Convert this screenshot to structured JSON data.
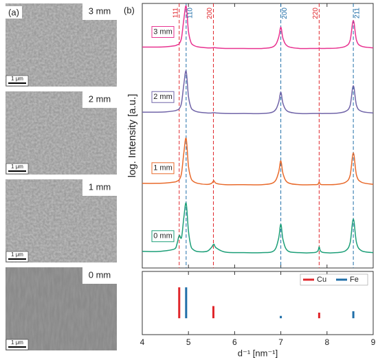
{
  "panel_a": {
    "label": "(a)",
    "images": [
      {
        "label": "3 mm",
        "scale_bar": "1 μm"
      },
      {
        "label": "2 mm",
        "scale_bar": "1 μm"
      },
      {
        "label": "1 mm",
        "scale_bar": "1 μm"
      },
      {
        "label": "0 mm",
        "scale_bar": "1 μm"
      }
    ]
  },
  "chart_data": {
    "type": "line",
    "panel_label": "(b)",
    "xlabel": "d⁻¹ [nm⁻¹]",
    "ylabel": "log. Intensity [a.u.]",
    "xlim": [
      4,
      9
    ],
    "xticks": [
      4,
      5,
      6,
      7,
      8,
      9
    ],
    "ylim": [
      0,
      100
    ],
    "x": [
      4.0,
      4.3,
      4.5,
      4.7,
      4.75,
      4.8,
      4.85,
      4.9,
      4.95,
      5.0,
      5.05,
      5.1,
      5.2,
      5.4,
      5.5,
      5.55,
      5.6,
      5.8,
      6.2,
      6.6,
      6.85,
      6.95,
      7.0,
      7.05,
      7.15,
      7.4,
      7.7,
      7.8,
      7.83,
      7.86,
      7.95,
      8.2,
      8.4,
      8.5,
      8.57,
      8.64,
      8.75,
      9.0
    ],
    "series": [
      {
        "name": "3 mm",
        "color": "#e8318f",
        "values": [
          83.5,
          83.5,
          83.6,
          84,
          84.3,
          84.8,
          87,
          94,
          99,
          89.5,
          85.5,
          84.3,
          83.6,
          83.2,
          83.2,
          83.3,
          83.2,
          83,
          83,
          83,
          83.8,
          87,
          91,
          86.6,
          83.8,
          83,
          83,
          83,
          83.1,
          83,
          83,
          83.1,
          83.8,
          86,
          93.5,
          86,
          83.8,
          83.2
        ]
      },
      {
        "name": "2 mm",
        "color": "#7064a8",
        "values": [
          58.9,
          58.9,
          59,
          59.4,
          59.7,
          60.2,
          62.4,
          69.4,
          74.4,
          64.9,
          60.9,
          59.7,
          59,
          58.6,
          58.6,
          58.7,
          58.6,
          58.4,
          58.4,
          58.4,
          59.2,
          62.4,
          66.4,
          62,
          59.2,
          58.4,
          58.4,
          58.4,
          58.5,
          58.4,
          58.4,
          58.5,
          59.2,
          61.4,
          68.9,
          61.4,
          59.2,
          58.6
        ]
      },
      {
        "name": "1 mm",
        "color": "#e8692a",
        "values": [
          32,
          32,
          32.1,
          32.5,
          32.8,
          33.4,
          35.8,
          43.5,
          49,
          38.5,
          34.2,
          32.8,
          32,
          31.6,
          32,
          33,
          32,
          31.5,
          31.5,
          31.5,
          32.4,
          36,
          40.5,
          35.5,
          32.3,
          31.5,
          31.5,
          31.6,
          32.5,
          31.6,
          31.5,
          31.6,
          32.4,
          35,
          43.5,
          35,
          32.4,
          31.6
        ]
      },
      {
        "name": "0 mm",
        "color": "#1b9e77",
        "values": [
          6.3,
          6.2,
          6.5,
          7.2,
          9,
          12.3,
          11.5,
          19,
          24.5,
          14,
          8.5,
          7,
          6.2,
          6.3,
          7.8,
          9,
          7.6,
          6,
          5.8,
          5.8,
          6.5,
          11,
          16.5,
          10.5,
          6.5,
          5.8,
          5.8,
          6.4,
          8,
          6.4,
          5.8,
          5.8,
          6.5,
          9.5,
          18.5,
          9.5,
          6.5,
          5.8
        ]
      }
    ],
    "reference_lines": [
      {
        "label": "111",
        "x": 4.8,
        "phase": "Cu"
      },
      {
        "label": "110",
        "x": 4.95,
        "phase": "Fe"
      },
      {
        "label": "200",
        "x": 5.54,
        "phase": "Cu"
      },
      {
        "label": "200",
        "x": 7.0,
        "phase": "Fe"
      },
      {
        "label": "220",
        "x": 7.83,
        "phase": "Cu"
      },
      {
        "label": "211",
        "x": 8.57,
        "phase": "Fe"
      }
    ],
    "sticks": {
      "ylim": [
        -35,
        100
      ],
      "legend": "upper right",
      "series": [
        {
          "name": "Cu",
          "color": "#e0262b",
          "x": [
            4.8,
            5.54,
            7.83
          ],
          "values": [
            66,
            26,
            12
          ]
        },
        {
          "name": "Fe",
          "color": "#1f6ea8",
          "x": [
            4.95,
            7.0,
            8.57
          ],
          "values": [
            66,
            5,
            15
          ]
        }
      ]
    }
  }
}
